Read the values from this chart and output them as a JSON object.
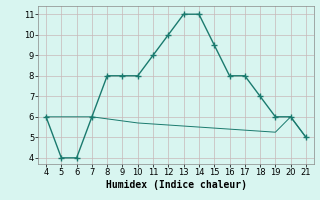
{
  "xlabel": "Humidex (Indice chaleur)",
  "line1_x": [
    4,
    5,
    6,
    7,
    8,
    9,
    10,
    11,
    12,
    13,
    14,
    15,
    16,
    17,
    18,
    19,
    20,
    21
  ],
  "line1_y": [
    6,
    4,
    4,
    6,
    8,
    8,
    8,
    9,
    10,
    11,
    11,
    9.5,
    8,
    8,
    7,
    6,
    6,
    5
  ],
  "line2_x": [
    4,
    5,
    6,
    7,
    8,
    9,
    10,
    11,
    12,
    13,
    14,
    15,
    16,
    17,
    18,
    19,
    20,
    21
  ],
  "line2_y": [
    6,
    6,
    6,
    6,
    5.9,
    5.8,
    5.7,
    5.65,
    5.6,
    5.55,
    5.5,
    5.45,
    5.4,
    5.35,
    5.3,
    5.25,
    6,
    5
  ],
  "line_color": "#1a7a6e",
  "background_color": "#d8f5f0",
  "grid_color": "#c8b8b8",
  "xlim_min": 3.5,
  "xlim_max": 21.5,
  "ylim_min": 3.7,
  "ylim_max": 11.4,
  "xticks": [
    4,
    5,
    6,
    7,
    8,
    9,
    10,
    11,
    12,
    13,
    14,
    15,
    16,
    17,
    18,
    19,
    20,
    21
  ],
  "yticks": [
    4,
    5,
    6,
    7,
    8,
    9,
    10,
    11
  ],
  "tick_labelsize": 6,
  "xlabel_fontsize": 7
}
